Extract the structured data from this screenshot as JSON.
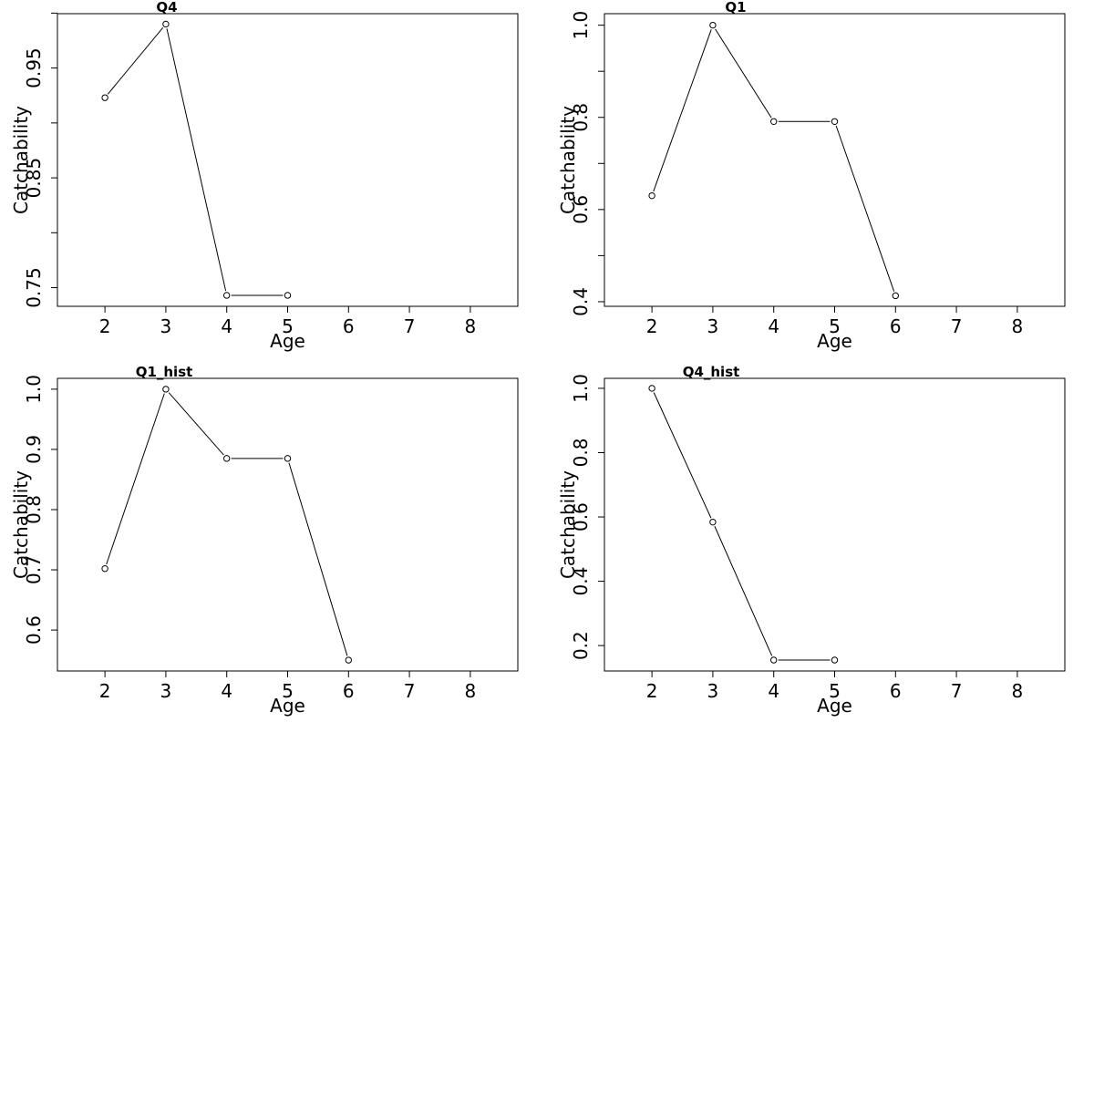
{
  "chart_data": [
    {
      "type": "line",
      "title": "Q4",
      "xlabel": "Age",
      "ylabel": "Catchability",
      "xlim": [
        1.22,
        8.78
      ],
      "ylim": [
        0.733,
        0.9995
      ],
      "x_ticks": [
        "2",
        "3",
        "4",
        "5",
        "6",
        "7",
        "8"
      ],
      "y_ticks": [
        "0.75",
        "0.85",
        "0.95"
      ],
      "y_minor_ticks": [
        0.8,
        0.9,
        1.0
      ],
      "grid": false,
      "series": [
        {
          "x": [
            2,
            3,
            4,
            5
          ],
          "y": [
            0.923,
            0.99,
            0.743,
            0.743
          ]
        }
      ]
    },
    {
      "type": "line",
      "title": "Q1",
      "xlabel": "Age",
      "ylabel": "Catchability",
      "xlim": [
        1.22,
        8.78
      ],
      "ylim": [
        0.39,
        1.025
      ],
      "x_ticks": [
        "2",
        "3",
        "4",
        "5",
        "6",
        "7",
        "8"
      ],
      "y_ticks": [
        "0.4",
        "0.6",
        "0.8",
        "1.0"
      ],
      "y_minor_ticks": [
        0.5,
        0.7,
        0.9
      ],
      "grid": false,
      "series": [
        {
          "x": [
            2,
            3,
            4,
            5,
            6
          ],
          "y": [
            0.63,
            1.0,
            0.791,
            0.791,
            0.413
          ]
        }
      ]
    },
    {
      "type": "line",
      "title": "Q1_hist",
      "xlabel": "Age",
      "ylabel": "Catchability",
      "xlim": [
        1.22,
        8.78
      ],
      "ylim": [
        0.532,
        1.018
      ],
      "x_ticks": [
        "2",
        "3",
        "4",
        "5",
        "6",
        "7",
        "8"
      ],
      "y_ticks": [
        "0.6",
        "0.7",
        "0.8",
        "0.9",
        "1.0"
      ],
      "y_minor_ticks": [],
      "grid": false,
      "series": [
        {
          "x": [
            2,
            3,
            4,
            5,
            6
          ],
          "y": [
            0.702,
            1.0,
            0.885,
            0.885,
            0.55
          ]
        }
      ]
    },
    {
      "type": "line",
      "title": "Q4_hist",
      "xlabel": "Age",
      "ylabel": "Catchability",
      "xlim": [
        1.22,
        8.78
      ],
      "ylim": [
        0.121,
        1.031
      ],
      "x_ticks": [
        "2",
        "3",
        "4",
        "5",
        "6",
        "7",
        "8"
      ],
      "y_ticks": [
        "0.2",
        "0.4",
        "0.6",
        "0.8",
        "1.0"
      ],
      "y_minor_ticks": [],
      "grid": false,
      "series": [
        {
          "x": [
            2,
            3,
            4,
            5
          ],
          "y": [
            1.0,
            0.584,
            0.155,
            0.155
          ]
        }
      ]
    }
  ]
}
